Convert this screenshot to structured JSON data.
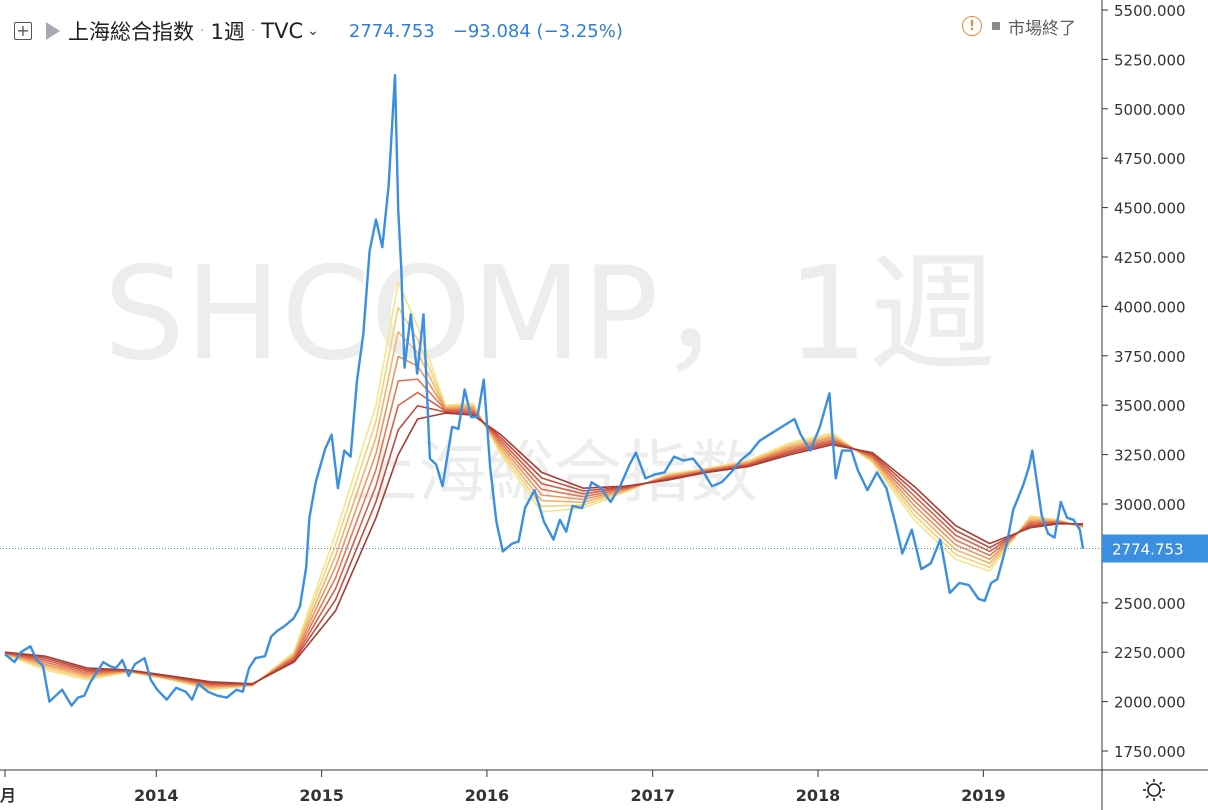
{
  "header": {
    "symbol_name": "上海総合指数",
    "interval": "1週",
    "exchange": "TVC",
    "last_price": "2774.753",
    "change": "−93.084 (−3.25%)",
    "market_status": "市場終了"
  },
  "watermark": {
    "primary": "SHCOMP，1週",
    "secondary": "上海総合指数"
  },
  "colors": {
    "price_line": "#3b8fe0",
    "ma_ribbon": [
      "#f4e58c",
      "#f5d17a",
      "#f2b36b",
      "#ec9560",
      "#e37a55",
      "#d5614a",
      "#c24d3f",
      "#a83c32"
    ],
    "price_tag": "#3b8fe0"
  },
  "settings_icon": "gear-icon",
  "chart_data": {
    "type": "line",
    "ylim": [
      1650,
      5550
    ],
    "y_ticks": [
      "1750.000",
      "2000.000",
      "2250.000",
      "2500.000",
      "2750.000",
      "3000.000",
      "3250.000",
      "3500.000",
      "3750.000",
      "4000.000",
      "4250.000",
      "4500.000",
      "4750.000",
      "5000.000",
      "5250.000",
      "5500.000"
    ],
    "y_tick_values": [
      1750,
      2000,
      2250,
      2500,
      2750,
      3000,
      3250,
      3500,
      3750,
      4000,
      4250,
      4500,
      4750,
      5000,
      5250,
      5500
    ],
    "x_ticks": [
      "月",
      "2014",
      "2015",
      "2016",
      "2017",
      "2018",
      "2019"
    ],
    "x_tick_dates": [
      "2013-02-01",
      "2014-01-01",
      "2015-01-01",
      "2016-01-01",
      "2017-01-01",
      "2018-01-01",
      "2019-01-01"
    ],
    "xlim": [
      "2013-02-01",
      "2019-08-09"
    ],
    "last_value": 2774.753,
    "last_label": "2774.753",
    "series": [
      {
        "role": "price",
        "points": [
          [
            "2013-02-01",
            2240
          ],
          [
            "2013-02-22",
            2200
          ],
          [
            "2013-03-08",
            2250
          ],
          [
            "2013-03-29",
            2280
          ],
          [
            "2013-04-12",
            2210
          ],
          [
            "2013-04-26",
            2180
          ],
          [
            "2013-05-10",
            2000
          ],
          [
            "2013-05-24",
            2030
          ],
          [
            "2013-06-07",
            2060
          ],
          [
            "2013-06-28",
            1980
          ],
          [
            "2013-07-12",
            2020
          ],
          [
            "2013-07-26",
            2030
          ],
          [
            "2013-08-09",
            2100
          ],
          [
            "2013-08-23",
            2150
          ],
          [
            "2013-09-06",
            2200
          ],
          [
            "2013-09-20",
            2180
          ],
          [
            "2013-10-04",
            2170
          ],
          [
            "2013-10-18",
            2210
          ],
          [
            "2013-11-01",
            2130
          ],
          [
            "2013-11-15",
            2190
          ],
          [
            "2013-12-06",
            2220
          ],
          [
            "2013-12-20",
            2110
          ],
          [
            "2014-01-03",
            2060
          ],
          [
            "2014-01-24",
            2010
          ],
          [
            "2014-02-14",
            2070
          ],
          [
            "2014-03-07",
            2050
          ],
          [
            "2014-03-21",
            2010
          ],
          [
            "2014-04-04",
            2090
          ],
          [
            "2014-04-25",
            2050
          ],
          [
            "2014-05-16",
            2030
          ],
          [
            "2014-06-06",
            2020
          ],
          [
            "2014-06-27",
            2060
          ],
          [
            "2014-07-11",
            2050
          ],
          [
            "2014-07-25",
            2170
          ],
          [
            "2014-08-08",
            2220
          ],
          [
            "2014-08-29",
            2230
          ],
          [
            "2014-09-12",
            2330
          ],
          [
            "2014-09-26",
            2360
          ],
          [
            "2014-10-10",
            2380
          ],
          [
            "2014-10-31",
            2420
          ],
          [
            "2014-11-14",
            2480
          ],
          [
            "2014-11-28",
            2680
          ],
          [
            "2014-12-05",
            2930
          ],
          [
            "2014-12-19",
            3110
          ],
          [
            "2015-01-09",
            3280
          ],
          [
            "2015-01-23",
            3350
          ],
          [
            "2015-02-06",
            3080
          ],
          [
            "2015-02-20",
            3270
          ],
          [
            "2015-03-06",
            3240
          ],
          [
            "2015-03-20",
            3620
          ],
          [
            "2015-04-03",
            3860
          ],
          [
            "2015-04-17",
            4280
          ],
          [
            "2015-05-01",
            4440
          ],
          [
            "2015-05-15",
            4300
          ],
          [
            "2015-05-29",
            4610
          ],
          [
            "2015-06-12",
            5170
          ],
          [
            "2015-06-19",
            4490
          ],
          [
            "2015-06-26",
            4190
          ],
          [
            "2015-07-03",
            3690
          ],
          [
            "2015-07-17",
            3960
          ],
          [
            "2015-07-31",
            3660
          ],
          [
            "2015-08-14",
            3960
          ],
          [
            "2015-08-28",
            3230
          ],
          [
            "2015-09-11",
            3200
          ],
          [
            "2015-09-25",
            3090
          ],
          [
            "2015-10-16",
            3390
          ],
          [
            "2015-10-30",
            3380
          ],
          [
            "2015-11-13",
            3580
          ],
          [
            "2015-11-27",
            3440
          ],
          [
            "2015-12-11",
            3440
          ],
          [
            "2015-12-25",
            3630
          ],
          [
            "2016-01-08",
            3190
          ],
          [
            "2016-01-22",
            2910
          ],
          [
            "2016-02-05",
            2760
          ],
          [
            "2016-02-26",
            2800
          ],
          [
            "2016-03-11",
            2810
          ],
          [
            "2016-03-25",
            2980
          ],
          [
            "2016-04-15",
            3070
          ],
          [
            "2016-05-06",
            2910
          ],
          [
            "2016-05-27",
            2820
          ],
          [
            "2016-06-10",
            2920
          ],
          [
            "2016-06-24",
            2860
          ],
          [
            "2016-07-08",
            2990
          ],
          [
            "2016-07-29",
            2980
          ],
          [
            "2016-08-19",
            3110
          ],
          [
            "2016-09-09",
            3080
          ],
          [
            "2016-09-30",
            3010
          ],
          [
            "2016-10-21",
            3090
          ],
          [
            "2016-11-11",
            3200
          ],
          [
            "2016-11-25",
            3260
          ],
          [
            "2016-12-16",
            3130
          ],
          [
            "2017-01-06",
            3150
          ],
          [
            "2017-01-27",
            3160
          ],
          [
            "2017-02-17",
            3240
          ],
          [
            "2017-03-10",
            3220
          ],
          [
            "2017-03-31",
            3230
          ],
          [
            "2017-04-21",
            3170
          ],
          [
            "2017-05-12",
            3090
          ],
          [
            "2017-06-02",
            3110
          ],
          [
            "2017-06-23",
            3160
          ],
          [
            "2017-07-14",
            3220
          ],
          [
            "2017-08-04",
            3260
          ],
          [
            "2017-08-25",
            3320
          ],
          [
            "2017-09-15",
            3350
          ],
          [
            "2017-10-13",
            3390
          ],
          [
            "2017-11-10",
            3430
          ],
          [
            "2017-11-24",
            3350
          ],
          [
            "2017-12-15",
            3270
          ],
          [
            "2018-01-05",
            3390
          ],
          [
            "2018-01-26",
            3560
          ],
          [
            "2018-02-09",
            3130
          ],
          [
            "2018-02-23",
            3270
          ],
          [
            "2018-03-16",
            3270
          ],
          [
            "2018-03-30",
            3170
          ],
          [
            "2018-04-20",
            3070
          ],
          [
            "2018-05-11",
            3160
          ],
          [
            "2018-06-01",
            3080
          ],
          [
            "2018-06-22",
            2890
          ],
          [
            "2018-07-06",
            2750
          ],
          [
            "2018-07-27",
            2870
          ],
          [
            "2018-08-17",
            2670
          ],
          [
            "2018-09-07",
            2700
          ],
          [
            "2018-09-28",
            2820
          ],
          [
            "2018-10-19",
            2550
          ],
          [
            "2018-11-09",
            2600
          ],
          [
            "2018-11-30",
            2590
          ],
          [
            "2018-12-21",
            2520
          ],
          [
            "2019-01-04",
            2510
          ],
          [
            "2019-01-18",
            2600
          ],
          [
            "2019-02-01",
            2620
          ],
          [
            "2019-02-22",
            2800
          ],
          [
            "2019-03-08",
            2970
          ],
          [
            "2019-03-29",
            3090
          ],
          [
            "2019-04-12",
            3190
          ],
          [
            "2019-04-19",
            3270
          ],
          [
            "2019-05-10",
            2940
          ],
          [
            "2019-05-24",
            2850
          ],
          [
            "2019-06-07",
            2830
          ],
          [
            "2019-06-21",
            3010
          ],
          [
            "2019-07-05",
            2930
          ],
          [
            "2019-07-19",
            2920
          ],
          [
            "2019-08-02",
            2870
          ],
          [
            "2019-08-09",
            2775
          ]
        ]
      },
      {
        "role": "ma-fast",
        "points": [
          [
            "2013-02-01",
            2240
          ],
          [
            "2013-05-01",
            2160
          ],
          [
            "2013-08-01",
            2110
          ],
          [
            "2013-11-01",
            2150
          ],
          [
            "2014-02-01",
            2110
          ],
          [
            "2014-05-01",
            2060
          ],
          [
            "2014-08-01",
            2080
          ],
          [
            "2014-11-01",
            2250
          ],
          [
            "2015-02-01",
            2850
          ],
          [
            "2015-05-01",
            3500
          ],
          [
            "2015-06-19",
            4120
          ],
          [
            "2015-08-01",
            3900
          ],
          [
            "2015-10-01",
            3500
          ],
          [
            "2015-12-01",
            3510
          ],
          [
            "2016-02-01",
            3250
          ],
          [
            "2016-05-01",
            2960
          ],
          [
            "2016-08-01",
            2980
          ],
          [
            "2016-11-01",
            3060
          ],
          [
            "2017-02-01",
            3150
          ],
          [
            "2017-05-01",
            3180
          ],
          [
            "2017-08-01",
            3220
          ],
          [
            "2017-11-01",
            3310
          ],
          [
            "2018-02-01",
            3360
          ],
          [
            "2018-05-01",
            3210
          ],
          [
            "2018-08-01",
            2920
          ],
          [
            "2018-11-01",
            2720
          ],
          [
            "2019-01-15",
            2660
          ],
          [
            "2019-04-15",
            2940
          ],
          [
            "2019-06-15",
            2920
          ],
          [
            "2019-08-09",
            2880
          ]
        ]
      },
      {
        "role": "ma-slow",
        "points": [
          [
            "2013-02-01",
            2250
          ],
          [
            "2013-05-01",
            2230
          ],
          [
            "2013-08-01",
            2170
          ],
          [
            "2013-11-01",
            2160
          ],
          [
            "2014-02-01",
            2130
          ],
          [
            "2014-05-01",
            2100
          ],
          [
            "2014-08-01",
            2090
          ],
          [
            "2014-11-01",
            2200
          ],
          [
            "2015-02-01",
            2460
          ],
          [
            "2015-05-01",
            2930
          ],
          [
            "2015-06-19",
            3250
          ],
          [
            "2015-08-01",
            3430
          ],
          [
            "2015-10-01",
            3460
          ],
          [
            "2015-12-01",
            3450
          ],
          [
            "2016-02-01",
            3350
          ],
          [
            "2016-05-01",
            3160
          ],
          [
            "2016-08-01",
            3080
          ],
          [
            "2016-11-01",
            3090
          ],
          [
            "2017-02-01",
            3120
          ],
          [
            "2017-05-01",
            3160
          ],
          [
            "2017-08-01",
            3190
          ],
          [
            "2017-11-01",
            3250
          ],
          [
            "2018-02-01",
            3300
          ],
          [
            "2018-05-01",
            3260
          ],
          [
            "2018-08-01",
            3090
          ],
          [
            "2018-11-01",
            2890
          ],
          [
            "2019-01-15",
            2800
          ],
          [
            "2019-04-15",
            2880
          ],
          [
            "2019-06-15",
            2900
          ],
          [
            "2019-08-09",
            2900
          ]
        ]
      }
    ]
  }
}
